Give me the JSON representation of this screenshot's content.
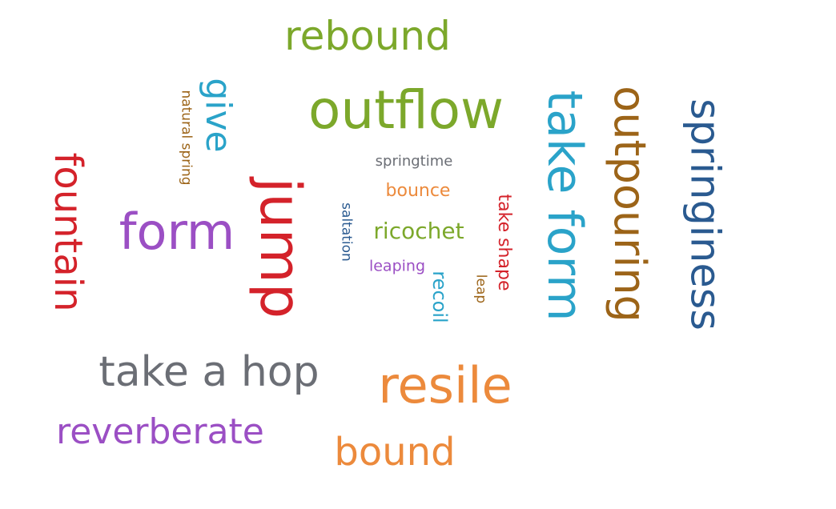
{
  "words": [
    {
      "key": "rebound",
      "text": "rebound",
      "color": "#7ca82b"
    },
    {
      "key": "outflow",
      "text": "outflow",
      "color": "#7ca82b"
    },
    {
      "key": "give",
      "text": "give",
      "color": "#2aa3c9"
    },
    {
      "key": "natural_spring",
      "text": "natural spring",
      "color": "#9c6418"
    },
    {
      "key": "take_form",
      "text": "take form",
      "color": "#2aa3c9"
    },
    {
      "key": "outpouring",
      "text": "outpouring",
      "color": "#9c6418"
    },
    {
      "key": "springiness",
      "text": "springiness",
      "color": "#2a5a90"
    },
    {
      "key": "fountain",
      "text": "fountain",
      "color": "#d4222a"
    },
    {
      "key": "form",
      "text": "form",
      "color": "#9b4fc4"
    },
    {
      "key": "jump",
      "text": "jump",
      "color": "#d4222a"
    },
    {
      "key": "springtime",
      "text": "springtime",
      "color": "#6b6e75"
    },
    {
      "key": "bounce",
      "text": "bounce",
      "color": "#ec8a3c"
    },
    {
      "key": "saltation",
      "text": "saltation",
      "color": "#2a5a90"
    },
    {
      "key": "ricochet",
      "text": "ricochet",
      "color": "#7ca82b"
    },
    {
      "key": "leaping",
      "text": "leaping",
      "color": "#9b4fc4"
    },
    {
      "key": "recoil",
      "text": "recoil",
      "color": "#2aa3c9"
    },
    {
      "key": "take_shape",
      "text": "take shape",
      "color": "#d4222a"
    },
    {
      "key": "leap",
      "text": "leap",
      "color": "#9c6418"
    },
    {
      "key": "take_a_hop",
      "text": "take a hop",
      "color": "#6b6e75"
    },
    {
      "key": "resile",
      "text": "resile",
      "color": "#ec8a3c"
    },
    {
      "key": "reverberate",
      "text": "reverberate",
      "color": "#9b4fc4"
    },
    {
      "key": "bound",
      "text": "bound",
      "color": "#ec8a3c"
    }
  ]
}
